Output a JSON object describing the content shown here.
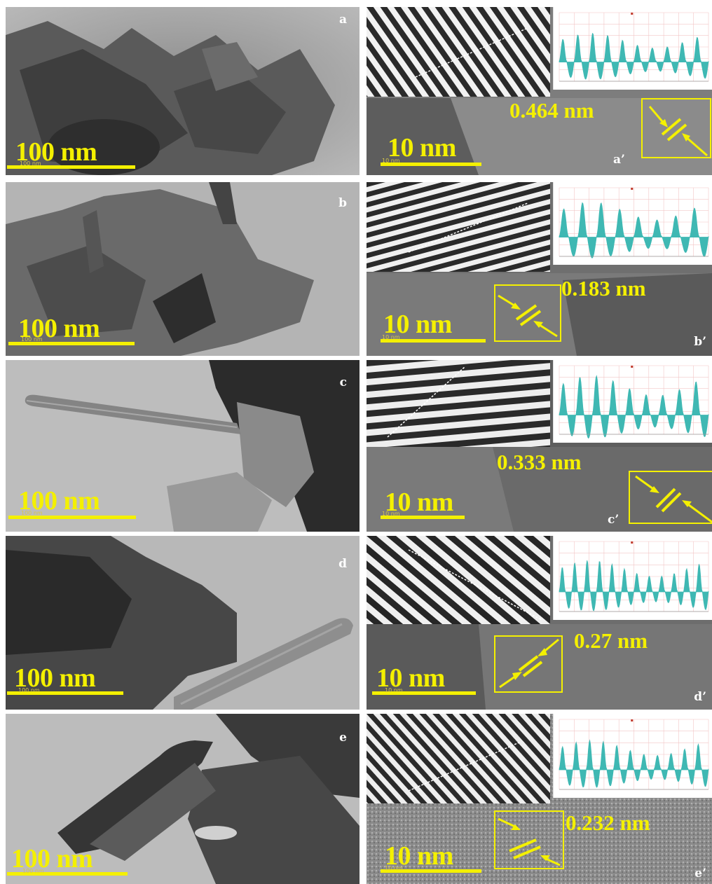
{
  "figure": {
    "panels": [
      {
        "left_label": "a",
        "right_label": "a’",
        "scale_left": "100 nm",
        "scale_right": "10 nm",
        "d_spacing": "0.464 nm"
      },
      {
        "left_label": "b",
        "right_label": "b’",
        "scale_left": "100 nm",
        "scale_right": "10 nm",
        "d_spacing": "0.183 nm"
      },
      {
        "left_label": "c",
        "right_label": "c’",
        "scale_left": "100 nm",
        "scale_right": "10 nm",
        "d_spacing": "0.333 nm"
      },
      {
        "left_label": "d",
        "right_label": "d’",
        "scale_left": "100 nm",
        "scale_right": "10 nm",
        "d_spacing": "0.27 nm"
      },
      {
        "left_label": "e",
        "right_label": "e’",
        "scale_left": "100 nm",
        "scale_right": "10 nm",
        "d_spacing": "0.232 nm"
      }
    ],
    "tiny_scale_left": "100 nm",
    "tiny_scale_right": "10 nm"
  },
  "colors": {
    "annotation_yellow": "#f4f000",
    "profile_teal": "#3fb8b3",
    "label_white": "#ffffff"
  }
}
